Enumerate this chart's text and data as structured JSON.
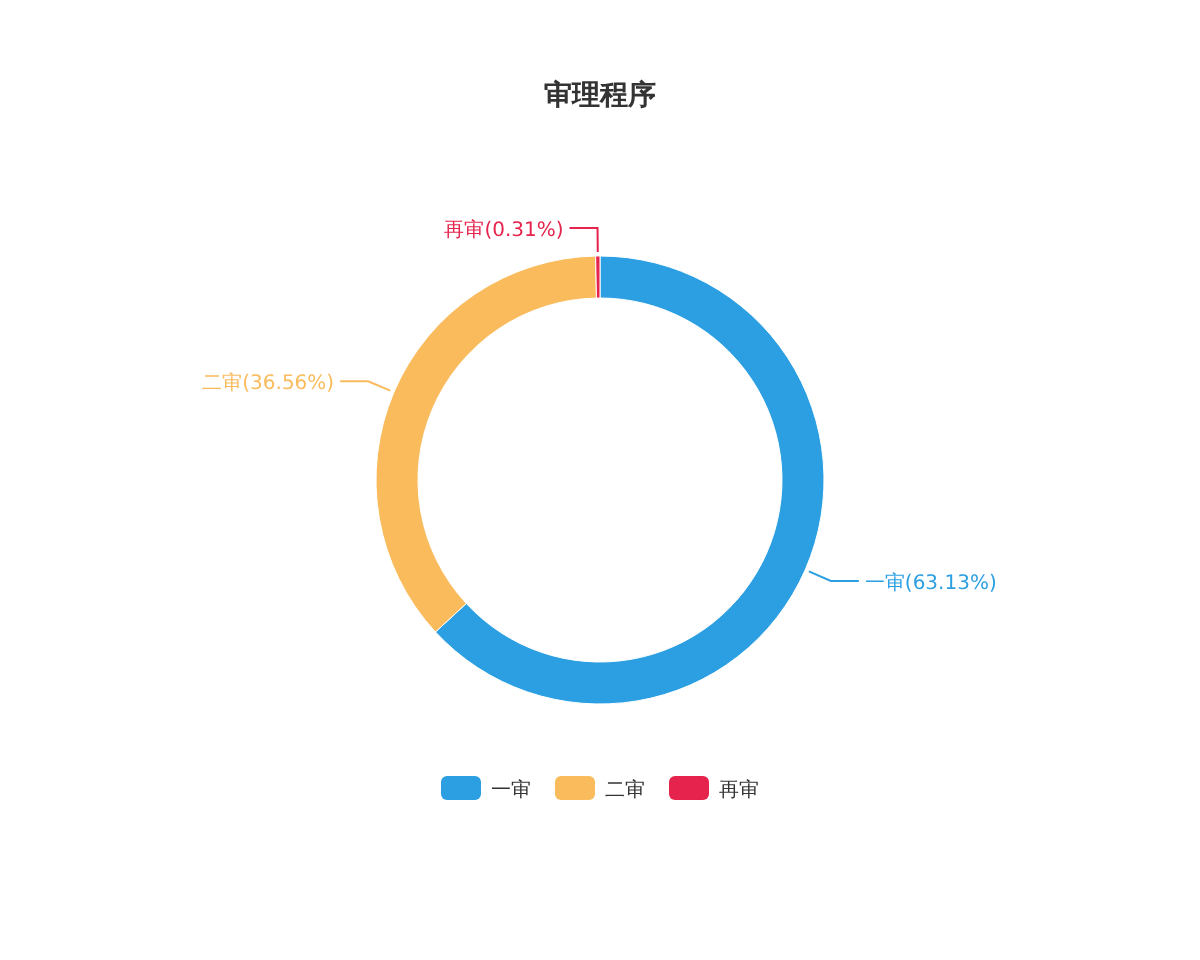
{
  "chart_data": {
    "type": "donut",
    "title": "审理程序",
    "categories": [
      "一审",
      "二审",
      "再审"
    ],
    "values": [
      63.13,
      36.56,
      0.31
    ],
    "colors": [
      "#2c9fe3",
      "#f9bb5c",
      "#e5234c"
    ],
    "value_labels": [
      "一审(63.13%)",
      "二审(36.56%)",
      "再审(0.31%)"
    ],
    "legend": "bottom"
  }
}
